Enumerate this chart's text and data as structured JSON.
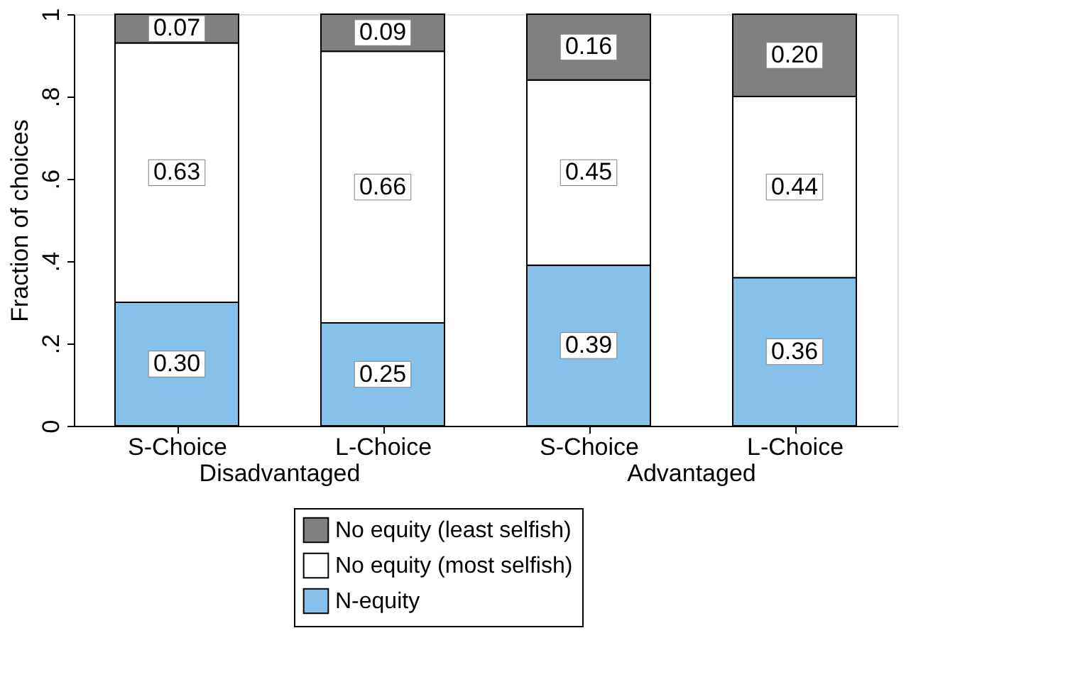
{
  "chart_data": {
    "type": "bar",
    "stacked": true,
    "ylabel": "Fraction of choices",
    "categories": [
      "S-Choice",
      "L-Choice",
      "S-Choice",
      "L-Choice"
    ],
    "series": [
      {
        "name": "N-equity",
        "color": "#85c1ea",
        "values": [
          0.3,
          0.25,
          0.39,
          0.36
        ],
        "value_labels": [
          "0.30",
          "0.25",
          "0.39",
          "0.36"
        ]
      },
      {
        "name": "No equity (most selfish)",
        "color": "#ffffff",
        "values": [
          0.63,
          0.66,
          0.45,
          0.44
        ],
        "value_labels": [
          "0.63",
          "0.66",
          "0.45",
          "0.44"
        ]
      },
      {
        "name": "No equity (least selfish)",
        "color": "#808080",
        "values": [
          0.07,
          0.09,
          0.16,
          0.2
        ],
        "value_labels": [
          "0.07",
          "0.09",
          "0.16",
          "0.20"
        ]
      }
    ],
    "ylim": [
      0,
      1
    ],
    "yticks": [
      0,
      {
        "value": 0.2,
        "label": ".2"
      },
      {
        "value": 0.4,
        "label": ".4"
      },
      {
        "value": 0.6,
        "label": ".6"
      },
      {
        "value": 0.8,
        "label": ".8"
      },
      1
    ],
    "grid": false,
    "legend": "bottom",
    "annotations": [
      "Disadvantaged",
      "Advantaged"
    ]
  }
}
